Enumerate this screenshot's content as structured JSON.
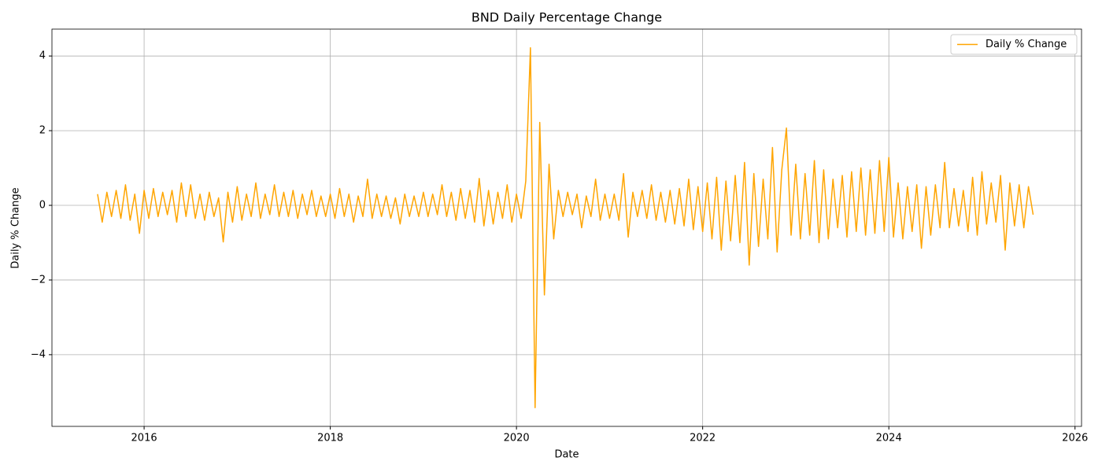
{
  "chart_data": {
    "type": "line",
    "title": "BND Daily Percentage Change",
    "x_label": "Date",
    "y_label": "Daily % Change",
    "x": [
      2015.5,
      2015.55,
      2015.6,
      2015.65,
      2015.7,
      2015.75,
      2015.8,
      2015.85,
      2015.9,
      2015.95,
      2016,
      2016.05,
      2016.1,
      2016.15,
      2016.2,
      2016.25,
      2016.3,
      2016.35,
      2016.4,
      2016.45,
      2016.5,
      2016.55,
      2016.6,
      2016.65,
      2016.7,
      2016.75,
      2016.8,
      2016.85,
      2016.9,
      2016.95,
      2017,
      2017.05,
      2017.1,
      2017.15,
      2017.2,
      2017.25,
      2017.3,
      2017.35,
      2017.4,
      2017.45,
      2017.5,
      2017.55,
      2017.6,
      2017.65,
      2017.7,
      2017.75,
      2017.8,
      2017.85,
      2017.9,
      2017.95,
      2018,
      2018.05,
      2018.1,
      2018.15,
      2018.2,
      2018.25,
      2018.3,
      2018.35,
      2018.4,
      2018.45,
      2018.5,
      2018.55,
      2018.6,
      2018.65,
      2018.7,
      2018.75,
      2018.8,
      2018.85,
      2018.9,
      2018.95,
      2019,
      2019.05,
      2019.1,
      2019.15,
      2019.2,
      2019.25,
      2019.3,
      2019.35,
      2019.4,
      2019.45,
      2019.5,
      2019.55,
      2019.6,
      2019.65,
      2019.7,
      2019.75,
      2019.8,
      2019.85,
      2019.9,
      2019.95,
      2020,
      2020.05,
      2020.1,
      2020.15,
      2020.2,
      2020.25,
      2020.3,
      2020.35,
      2020.4,
      2020.45,
      2020.5,
      2020.55,
      2020.6,
      2020.65,
      2020.7,
      2020.75,
      2020.8,
      2020.85,
      2020.9,
      2020.95,
      2021,
      2021.05,
      2021.1,
      2021.15,
      2021.2,
      2021.25,
      2021.3,
      2021.35,
      2021.4,
      2021.45,
      2021.5,
      2021.55,
      2021.6,
      2021.65,
      2021.7,
      2021.75,
      2021.8,
      2021.85,
      2021.9,
      2021.95,
      2022,
      2022.05,
      2022.1,
      2022.15,
      2022.2,
      2022.25,
      2022.3,
      2022.35,
      2022.4,
      2022.45,
      2022.5,
      2022.55,
      2022.6,
      2022.65,
      2022.7,
      2022.75,
      2022.8,
      2022.85,
      2022.9,
      2022.95,
      2023,
      2023.05,
      2023.1,
      2023.15,
      2023.2,
      2023.25,
      2023.3,
      2023.35,
      2023.4,
      2023.45,
      2023.5,
      2023.55,
      2023.6,
      2023.65,
      2023.7,
      2023.75,
      2023.8,
      2023.85,
      2023.9,
      2023.95,
      2024,
      2024.05,
      2024.1,
      2024.15,
      2024.2,
      2024.25,
      2024.3,
      2024.35,
      2024.4,
      2024.45,
      2024.5,
      2024.55,
      2024.6,
      2024.65,
      2024.7,
      2024.75,
      2024.8,
      2024.85,
      2024.9,
      2024.95,
      2025,
      2025.05,
      2025.1,
      2025.15,
      2025.2,
      2025.25,
      2025.3,
      2025.35,
      2025.4,
      2025.45,
      2025.5,
      2025.55
    ],
    "series": [
      {
        "name": "Daily % Change",
        "color": "#ffa500",
        "values": [
          0.3,
          -0.45,
          0.35,
          -0.3,
          0.4,
          -0.35,
          0.55,
          -0.4,
          0.3,
          -0.75,
          0.4,
          -0.35,
          0.45,
          -0.3,
          0.35,
          -0.25,
          0.4,
          -0.45,
          0.6,
          -0.3,
          0.55,
          -0.35,
          0.3,
          -0.4,
          0.35,
          -0.3,
          0.2,
          -0.98,
          0.35,
          -0.45,
          0.5,
          -0.4,
          0.3,
          -0.3,
          0.6,
          -0.35,
          0.3,
          -0.25,
          0.55,
          -0.3,
          0.35,
          -0.3,
          0.4,
          -0.35,
          0.3,
          -0.25,
          0.4,
          -0.3,
          0.25,
          -0.3,
          0.3,
          -0.35,
          0.45,
          -0.3,
          0.3,
          -0.45,
          0.25,
          -0.3,
          0.7,
          -0.35,
          0.3,
          -0.3,
          0.25,
          -0.35,
          0.2,
          -0.5,
          0.3,
          -0.3,
          0.25,
          -0.3,
          0.35,
          -0.3,
          0.3,
          -0.25,
          0.55,
          -0.3,
          0.35,
          -0.4,
          0.45,
          -0.35,
          0.4,
          -0.45,
          0.72,
          -0.55,
          0.4,
          -0.5,
          0.35,
          -0.35,
          0.55,
          -0.45,
          0.3,
          -0.35,
          0.65,
          4.22,
          -5.42,
          2.22,
          -2.4,
          1.1,
          -0.9,
          0.4,
          -0.3,
          0.35,
          -0.25,
          0.3,
          -0.6,
          0.25,
          -0.3,
          0.7,
          -0.4,
          0.3,
          -0.35,
          0.3,
          -0.4,
          0.85,
          -0.85,
          0.35,
          -0.3,
          0.4,
          -0.35,
          0.55,
          -0.4,
          0.35,
          -0.45,
          0.4,
          -0.5,
          0.45,
          -0.55,
          0.7,
          -0.65,
          0.5,
          -0.7,
          0.6,
          -0.9,
          0.75,
          -1.2,
          0.65,
          -0.95,
          0.8,
          -1.0,
          1.15,
          -1.6,
          0.85,
          -1.1,
          0.7,
          -0.9,
          1.55,
          -1.25,
          0.95,
          2.07,
          -0.8,
          1.1,
          -0.9,
          0.85,
          -0.8,
          1.2,
          -1.0,
          0.95,
          -0.9,
          0.7,
          -0.6,
          0.8,
          -0.85,
          0.9,
          -0.7,
          1.0,
          -0.8,
          0.95,
          -0.75,
          1.2,
          -0.7,
          1.28,
          -0.85,
          0.6,
          -0.9,
          0.5,
          -0.7,
          0.55,
          -1.15,
          0.5,
          -0.8,
          0.55,
          -0.6,
          1.15,
          -0.6,
          0.45,
          -0.55,
          0.4,
          -0.7,
          0.75,
          -0.8,
          0.9,
          -0.5,
          0.6,
          -0.45,
          0.8,
          -1.2,
          0.6,
          -0.55,
          0.55,
          -0.6,
          0.5,
          -0.25
        ]
      }
    ],
    "xlim": [
      2015.01,
      2026.07
    ],
    "xticks": [
      2016,
      2018,
      2020,
      2022,
      2024,
      2026
    ],
    "ylim": [
      -5.92,
      4.72
    ],
    "yticks": [
      {
        "value": -4,
        "label": "−4"
      },
      {
        "value": -2,
        "label": "−2"
      },
      0,
      2,
      4
    ],
    "grid": true,
    "legend": "upper right"
  }
}
